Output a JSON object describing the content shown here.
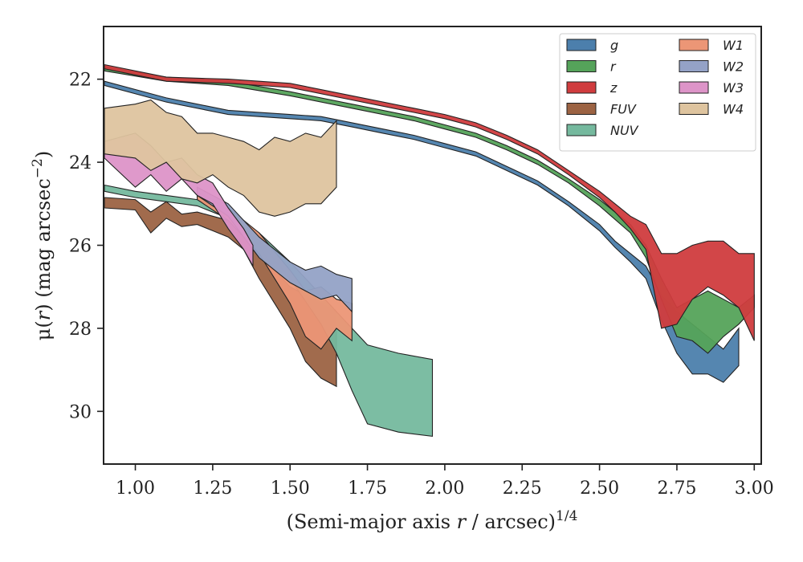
{
  "chart_data": {
    "type": "area",
    "xlabel": "(Semi-major axis r / arcsec)^1/4",
    "xlabel_parts": {
      "open": "(Semi-major axis ",
      "var": "r",
      "mid": " / arcsec)",
      "exp": "1/4"
    },
    "ylabel": "μ(r) (mag arcsec^-2)",
    "ylabel_parts": {
      "mu": "μ(",
      "var": "r",
      "close": ") (mag arcsec",
      "exp": "−2",
      "end": ")"
    },
    "xlim": [
      0.9,
      3.02
    ],
    "ylim": [
      31.25,
      20.75
    ],
    "y_inverted": true,
    "xticks": [
      "1.00",
      "1.25",
      "1.50",
      "1.75",
      "2.00",
      "2.25",
      "2.50",
      "2.75",
      "3.00"
    ],
    "xtick_values": [
      1.0,
      1.25,
      1.5,
      1.75,
      2.0,
      2.25,
      2.5,
      2.75,
      3.0
    ],
    "yticks": [
      "22",
      "24",
      "26",
      "28",
      "30"
    ],
    "ytick_values": [
      22,
      24,
      26,
      28,
      30
    ],
    "grid": false,
    "legend": {
      "placement": "top-right",
      "columns": 2
    },
    "series": [
      {
        "name": "g",
        "color": "#4c7fac",
        "x": [
          0.9,
          1.1,
          1.3,
          1.5,
          1.6,
          1.7,
          1.8,
          1.9,
          2.0,
          2.1,
          2.2,
          2.3,
          2.4,
          2.5,
          2.55,
          2.6,
          2.65,
          2.7,
          2.75,
          2.8,
          2.85,
          2.9,
          2.95
        ],
        "y_upper": [
          22.05,
          22.45,
          22.75,
          22.85,
          22.9,
          23.05,
          23.2,
          23.35,
          23.55,
          23.75,
          24.1,
          24.45,
          24.95,
          25.5,
          25.9,
          26.2,
          26.5,
          27.2,
          27.6,
          27.9,
          28.2,
          28.5,
          28.0
        ],
        "y_lower": [
          22.15,
          22.55,
          22.85,
          22.95,
          23.0,
          23.15,
          23.3,
          23.45,
          23.65,
          23.85,
          24.2,
          24.55,
          25.05,
          25.65,
          26.05,
          26.4,
          26.8,
          27.8,
          28.6,
          29.1,
          29.1,
          29.3,
          28.9
        ]
      },
      {
        "name": "r",
        "color": "#55a35a",
        "x": [
          0.9,
          1.1,
          1.3,
          1.5,
          1.7,
          1.9,
          2.0,
          2.1,
          2.2,
          2.3,
          2.4,
          2.5,
          2.6,
          2.65,
          2.7,
          2.75,
          2.8,
          2.85,
          2.9,
          2.95,
          3.0
        ],
        "y_upper": [
          21.7,
          21.95,
          22.05,
          22.3,
          22.6,
          22.9,
          23.1,
          23.3,
          23.6,
          23.95,
          24.4,
          24.9,
          25.5,
          26.0,
          26.8,
          27.5,
          27.3,
          27.1,
          27.3,
          27.5,
          27.2
        ],
        "y_lower": [
          21.8,
          22.05,
          22.15,
          22.4,
          22.7,
          23.0,
          23.2,
          23.4,
          23.7,
          24.05,
          24.5,
          25.05,
          25.7,
          26.3,
          27.3,
          28.2,
          28.3,
          28.6,
          28.2,
          27.9,
          27.5
        ]
      },
      {
        "name": "z",
        "color": "#d03c3e",
        "x": [
          0.9,
          1.1,
          1.3,
          1.5,
          1.7,
          1.9,
          2.0,
          2.1,
          2.2,
          2.3,
          2.4,
          2.5,
          2.55,
          2.6,
          2.65,
          2.7,
          2.75,
          2.8,
          2.85,
          2.9,
          2.95,
          3.0
        ],
        "y_upper": [
          21.65,
          21.95,
          22.0,
          22.1,
          22.4,
          22.7,
          22.85,
          23.05,
          23.35,
          23.7,
          24.2,
          24.7,
          25.0,
          25.3,
          25.5,
          26.2,
          26.2,
          26.0,
          25.9,
          25.9,
          26.2,
          26.2
        ],
        "y_lower": [
          21.75,
          22.05,
          22.1,
          22.2,
          22.5,
          22.8,
          22.95,
          23.15,
          23.45,
          23.8,
          24.3,
          24.85,
          25.2,
          25.6,
          26.1,
          28.0,
          27.9,
          27.3,
          27.0,
          27.2,
          27.5,
          28.3
        ]
      },
      {
        "name": "FUV",
        "color": "#9c6343",
        "x": [
          0.9,
          1.0,
          1.05,
          1.1,
          1.15,
          1.2,
          1.25,
          1.3,
          1.35,
          1.4,
          1.45,
          1.5,
          1.55,
          1.6,
          1.65
        ],
        "y_upper": [
          24.85,
          24.9,
          25.2,
          24.95,
          25.25,
          25.2,
          25.3,
          25.4,
          25.6,
          26.0,
          26.6,
          27.0,
          27.2,
          27.4,
          27.6
        ],
        "y_lower": [
          25.1,
          25.15,
          25.7,
          25.35,
          25.55,
          25.5,
          25.65,
          25.8,
          26.1,
          26.8,
          27.4,
          28.0,
          28.8,
          29.2,
          29.4
        ]
      },
      {
        "name": "NUV",
        "color": "#75b99e",
        "x": [
          0.9,
          1.0,
          1.1,
          1.2,
          1.3,
          1.4,
          1.5,
          1.6,
          1.65,
          1.7,
          1.75,
          1.85,
          1.96
        ],
        "y_upper": [
          24.55,
          24.7,
          24.8,
          24.9,
          25.2,
          25.7,
          26.4,
          27.2,
          27.6,
          28.0,
          28.4,
          28.6,
          28.75
        ],
        "y_lower": [
          24.7,
          24.85,
          24.95,
          25.05,
          25.35,
          25.9,
          26.8,
          27.9,
          28.6,
          29.5,
          30.3,
          30.5,
          30.6
        ]
      },
      {
        "name": "W1",
        "color": "#ec9676",
        "x": [
          1.2,
          1.3,
          1.4,
          1.5,
          1.55,
          1.6,
          1.65,
          1.7
        ],
        "y_upper": [
          24.7,
          25.1,
          25.7,
          26.6,
          27.1,
          27.0,
          27.3,
          27.4
        ],
        "y_lower": [
          24.9,
          25.4,
          26.2,
          27.4,
          28.2,
          28.5,
          28.0,
          28.3
        ]
      },
      {
        "name": "W2",
        "color": "#94a2c6",
        "x": [
          1.2,
          1.3,
          1.4,
          1.5,
          1.55,
          1.6,
          1.65,
          1.7
        ],
        "y_upper": [
          24.6,
          25.0,
          25.8,
          26.4,
          26.6,
          26.5,
          26.7,
          26.8
        ],
        "y_lower": [
          24.8,
          25.3,
          26.3,
          26.9,
          27.1,
          27.3,
          27.2,
          27.6
        ]
      },
      {
        "name": "W3",
        "color": "#dd94c8",
        "x": [
          0.9,
          1.0,
          1.05,
          1.1,
          1.15,
          1.2,
          1.25,
          1.3,
          1.35,
          1.38
        ],
        "y_upper": [
          23.5,
          23.3,
          23.6,
          24.0,
          23.9,
          24.3,
          24.5,
          25.1,
          25.6,
          26.0
        ],
        "y_lower": [
          23.9,
          24.6,
          24.3,
          24.7,
          24.4,
          24.8,
          25.0,
          25.6,
          26.1,
          26.5
        ]
      },
      {
        "name": "W4",
        "color": "#dec49f",
        "x": [
          0.9,
          1.0,
          1.05,
          1.1,
          1.15,
          1.2,
          1.25,
          1.3,
          1.35,
          1.4,
          1.45,
          1.5,
          1.55,
          1.6,
          1.65
        ],
        "y_upper": [
          22.7,
          22.6,
          22.5,
          22.8,
          22.9,
          23.3,
          23.3,
          23.4,
          23.5,
          23.7,
          23.4,
          23.5,
          23.3,
          23.4,
          23.0
        ],
        "y_lower": [
          23.8,
          23.9,
          24.2,
          24.0,
          24.4,
          24.5,
          24.3,
          24.6,
          24.8,
          25.2,
          25.3,
          25.2,
          25.0,
          25.0,
          24.6
        ]
      }
    ]
  }
}
